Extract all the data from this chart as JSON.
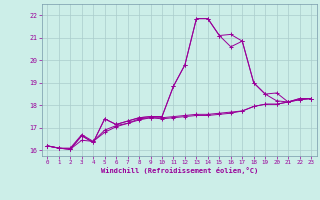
{
  "xlabel": "Windchill (Refroidissement éolien,°C)",
  "background_color": "#cceee8",
  "grid_color": "#aacccc",
  "line_color": "#990099",
  "xlim": [
    -0.5,
    23.5
  ],
  "ylim": [
    15.75,
    22.5
  ],
  "xticks": [
    0,
    1,
    2,
    3,
    4,
    5,
    6,
    7,
    8,
    9,
    10,
    11,
    12,
    13,
    14,
    15,
    16,
    17,
    18,
    19,
    20,
    21,
    22,
    23
  ],
  "yticks": [
    16,
    17,
    18,
    19,
    20,
    21,
    22
  ],
  "curves": [
    {
      "x": [
        0,
        1,
        2,
        3,
        4,
        5,
        6,
        7,
        8,
        9,
        10,
        11,
        12,
        13,
        14,
        15,
        16,
        17,
        18,
        19,
        20,
        21,
        22,
        23
      ],
      "y": [
        16.2,
        16.1,
        16.1,
        16.7,
        16.4,
        16.9,
        17.1,
        17.2,
        17.4,
        17.45,
        17.4,
        17.45,
        17.5,
        17.55,
        17.55,
        17.6,
        17.65,
        17.75,
        17.95,
        18.05,
        18.05,
        18.15,
        18.25,
        18.3
      ]
    },
    {
      "x": [
        0,
        1,
        2,
        3,
        4,
        5,
        6,
        7,
        8,
        9,
        10,
        11,
        12,
        13,
        14,
        15,
        16,
        17,
        18,
        19,
        20,
        21,
        22,
        23
      ],
      "y": [
        16.2,
        16.1,
        16.05,
        16.45,
        16.4,
        16.8,
        17.05,
        17.2,
        17.35,
        17.45,
        17.45,
        17.5,
        17.55,
        17.6,
        17.6,
        17.65,
        17.7,
        17.75,
        17.95,
        18.05,
        18.05,
        18.15,
        18.25,
        18.3
      ]
    },
    {
      "x": [
        0,
        1,
        2,
        3,
        4,
        5,
        6,
        7,
        8,
        9,
        10,
        11,
        12,
        13,
        14,
        15,
        16,
        17,
        18,
        19,
        20,
        21,
        22,
        23
      ],
      "y": [
        16.2,
        16.1,
        16.05,
        16.65,
        16.35,
        17.4,
        17.15,
        17.3,
        17.45,
        17.5,
        17.5,
        18.85,
        19.8,
        21.85,
        21.85,
        21.1,
        21.15,
        20.85,
        19.0,
        18.5,
        18.55,
        18.15,
        18.3,
        18.3
      ]
    },
    {
      "x": [
        0,
        1,
        2,
        3,
        4,
        5,
        6,
        7,
        8,
        9,
        10,
        11,
        12,
        13,
        14,
        15,
        16,
        17,
        18,
        19,
        20,
        21,
        22,
        23
      ],
      "y": [
        16.2,
        16.1,
        16.05,
        16.65,
        16.35,
        17.4,
        17.15,
        17.3,
        17.45,
        17.5,
        17.5,
        18.85,
        19.8,
        21.85,
        21.85,
        21.1,
        20.6,
        20.85,
        19.0,
        18.5,
        18.2,
        18.15,
        18.3,
        18.3
      ]
    }
  ]
}
